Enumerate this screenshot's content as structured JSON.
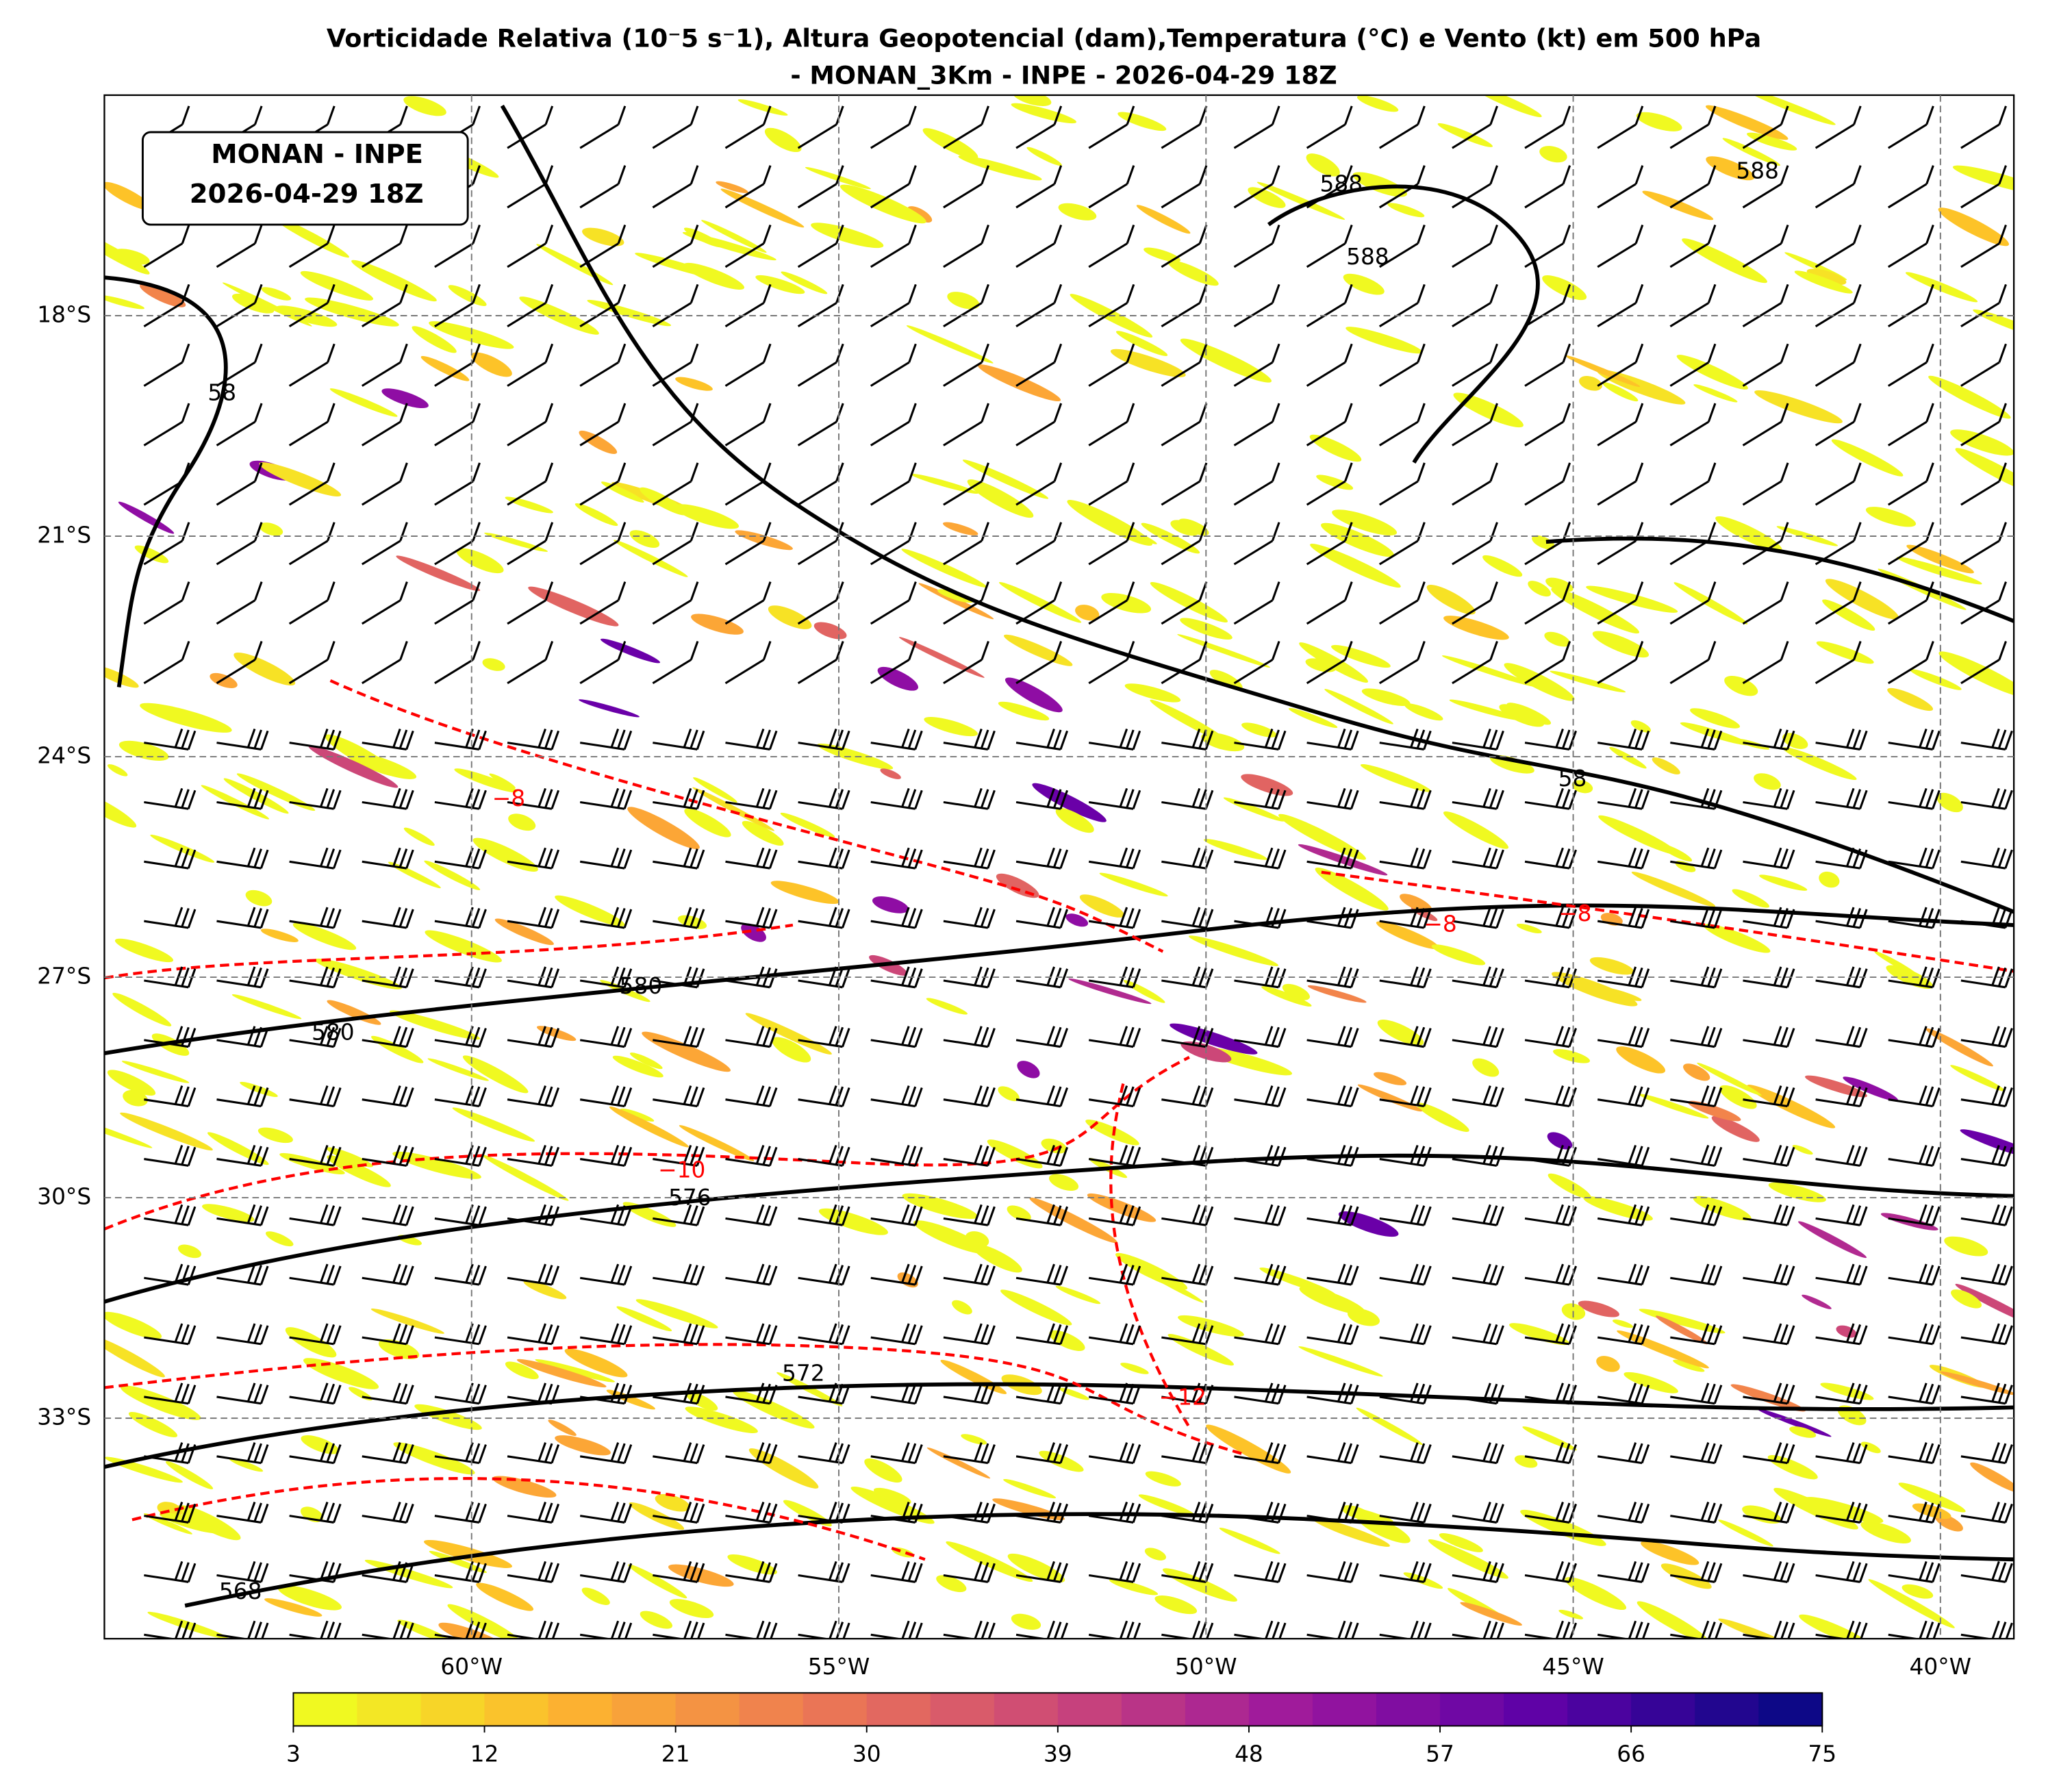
{
  "title": [
    "Vorticidade Relativa (10⁻5 s⁻1), Altura Geopotencial (dam),Temperatura (°C) e Vento (kt) em 500 hPa",
    "- MONAN_3Km - INPE - 2026-04-29 18Z"
  ],
  "inset_label": [
    "MONAN - INPE",
    "2026-04-29 18Z"
  ],
  "map": {
    "xlim": [
      -65,
      -39
    ],
    "ylim": [
      -36,
      -15
    ],
    "xticks": [
      {
        "value": -60,
        "label": "60°W"
      },
      {
        "value": -55,
        "label": "55°W"
      },
      {
        "value": -50,
        "label": "50°W"
      },
      {
        "value": -45,
        "label": "45°W"
      },
      {
        "value": -40,
        "label": "40°W"
      }
    ],
    "yticks": [
      {
        "value": -18,
        "label": "18°S"
      },
      {
        "value": -21,
        "label": "21°S"
      },
      {
        "value": -24,
        "label": "24°S"
      },
      {
        "value": -27,
        "label": "27°S"
      },
      {
        "value": -30,
        "label": "30°S"
      },
      {
        "value": -33,
        "label": "33°S"
      }
    ],
    "grid": true
  },
  "contour_labels": [
    "588",
    "588",
    "588",
    "58",
    "58",
    "580",
    "580",
    "576",
    "572",
    "568",
    "−8",
    "−8",
    "−8",
    "−10",
    "−12"
  ],
  "colorbar": {
    "lim": [
      3,
      75
    ],
    "ticks": [
      3,
      12,
      21,
      30,
      39,
      48,
      57,
      66,
      75
    ]
  }
}
